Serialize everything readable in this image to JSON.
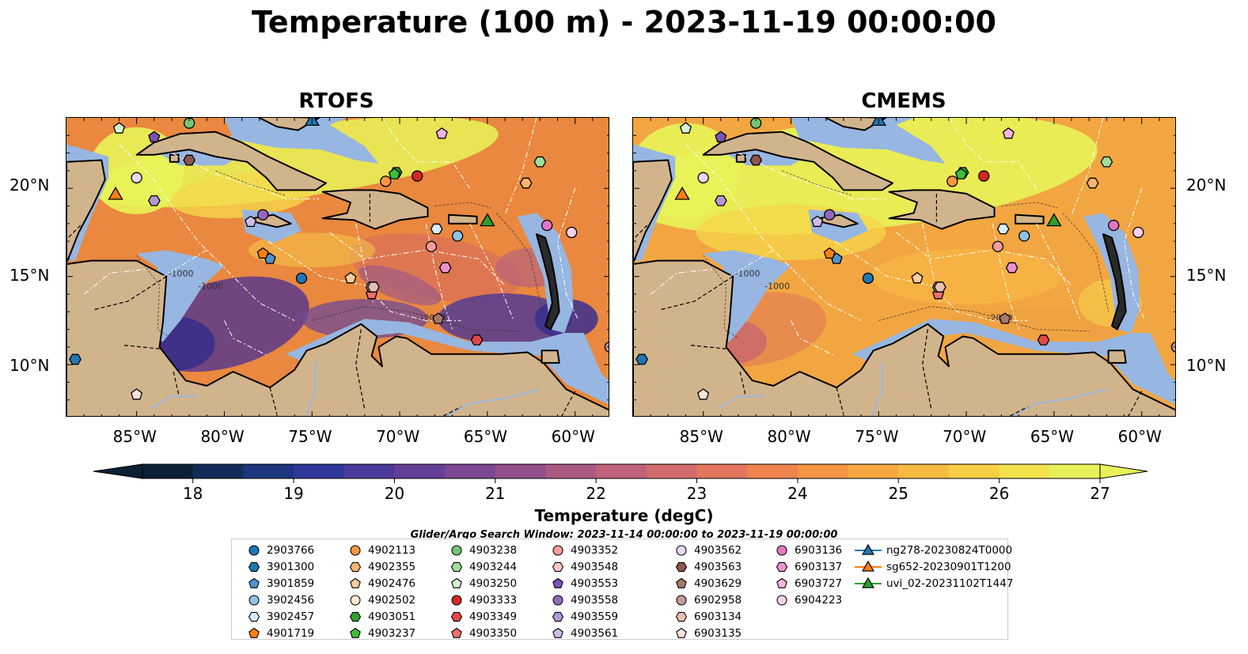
{
  "title": "Temperature (100 m) - 2023-11-19 00:00:00",
  "panels": [
    {
      "title": "RTOFS",
      "style": "cold"
    },
    {
      "title": "CMEMS",
      "style": "warm"
    }
  ],
  "map": {
    "lon_labels": [
      "85°W",
      "80°W",
      "75°W",
      "70°W",
      "65°W",
      "60°W"
    ],
    "lat_labels": [
      "20°N",
      "15°N",
      "10°N"
    ],
    "lon_range": [
      -89,
      -58
    ],
    "lat_range": [
      7,
      24
    ],
    "contour_labels": [
      "-1000",
      "-1000",
      "-2000"
    ],
    "colors": {
      "land": "#d2b48c",
      "shallow": "#97b6e1",
      "deep": "#0b2035",
      "warm": "#f4a040",
      "hot": "#e8f458",
      "cold": "#5a3a8c"
    }
  },
  "colorbar": {
    "ticks": [
      "18",
      "19",
      "20",
      "21",
      "22",
      "23",
      "24",
      "25",
      "26",
      "27"
    ],
    "label": "Temperature (degC)",
    "range": [
      18,
      27
    ],
    "colors": [
      "#0b2035",
      "#112d57",
      "#1c3680",
      "#2f3799",
      "#4b3a9b",
      "#633f98",
      "#7b4792",
      "#93508b",
      "#aa5983",
      "#c0627a",
      "#d26b6d",
      "#e2765e",
      "#ef844f",
      "#f59445",
      "#f7a742",
      "#f8bb42",
      "#f6cf45",
      "#f2e14b",
      "#e9f15a"
    ]
  },
  "search_window": "Glider/Argo Search Window: 2023-11-14 00:00:00 to 2023-11-19 00:00:00",
  "legend": [
    {
      "label": "2903766",
      "marker": "circle",
      "color": "#1f77b4"
    },
    {
      "label": "3901300",
      "marker": "hexagon",
      "color": "#1f77b4"
    },
    {
      "label": "3901859",
      "marker": "pentagon",
      "color": "#4c94d0"
    },
    {
      "label": "3902456",
      "marker": "circle",
      "color": "#8fc3e6"
    },
    {
      "label": "3902457",
      "marker": "hexagon",
      "color": "#d5ecfa"
    },
    {
      "label": "4901719",
      "marker": "pentagon",
      "color": "#ff7f0e"
    },
    {
      "label": "4902113",
      "marker": "circle",
      "color": "#ff9640"
    },
    {
      "label": "4902355",
      "marker": "hexagon",
      "color": "#ffb46e"
    },
    {
      "label": "4902476",
      "marker": "pentagon",
      "color": "#ffcc99"
    },
    {
      "label": "4902502",
      "marker": "circle",
      "color": "#ffe6cc"
    },
    {
      "label": "4903051",
      "marker": "hexagon",
      "color": "#2ca02c"
    },
    {
      "label": "4903237",
      "marker": "pentagon",
      "color": "#3dbf3d"
    },
    {
      "label": "4903238",
      "marker": "circle",
      "color": "#74c476"
    },
    {
      "label": "4903244",
      "marker": "hexagon",
      "color": "#a1dd9b"
    },
    {
      "label": "4903250",
      "marker": "pentagon",
      "color": "#d3f5cf"
    },
    {
      "label": "4903333",
      "marker": "circle",
      "color": "#d62728"
    },
    {
      "label": "4903349",
      "marker": "hexagon",
      "color": "#e04848"
    },
    {
      "label": "4903350",
      "marker": "pentagon",
      "color": "#ee7070"
    },
    {
      "label": "4903352",
      "marker": "circle",
      "color": "#f59c9a"
    },
    {
      "label": "4903548",
      "marker": "hexagon",
      "color": "#fac6c4"
    },
    {
      "label": "4903553",
      "marker": "pentagon",
      "color": "#7d52b8"
    },
    {
      "label": "4903558",
      "marker": "circle",
      "color": "#9467bd"
    },
    {
      "label": "4903559",
      "marker": "hexagon",
      "color": "#b398d6"
    },
    {
      "label": "4903561",
      "marker": "pentagon",
      "color": "#d0bce8"
    },
    {
      "label": "4903562",
      "marker": "circle",
      "color": "#ead9f7"
    },
    {
      "label": "4903563",
      "marker": "hexagon",
      "color": "#8c564b"
    },
    {
      "label": "4903629",
      "marker": "pentagon",
      "color": "#a8786c"
    },
    {
      "label": "6902958",
      "marker": "circle",
      "color": "#c49c94"
    },
    {
      "label": "6903134",
      "marker": "hexagon",
      "color": "#e8bfb3"
    },
    {
      "label": "6903135",
      "marker": "pentagon",
      "color": "#f9e1d6"
    },
    {
      "label": "6903136",
      "marker": "circle",
      "color": "#e377c2"
    },
    {
      "label": "6903137",
      "marker": "hexagon",
      "color": "#ec92d0"
    },
    {
      "label": "6903727",
      "marker": "pentagon",
      "color": "#f5b5e0"
    },
    {
      "label": "6904223",
      "marker": "circle",
      "color": "#fbd1ee"
    },
    {
      "label": "ng278-20230824T0000",
      "marker": "triangle-line",
      "color": "#1f77b4"
    },
    {
      "label": "sg652-20230901T1200",
      "marker": "triangle-line",
      "color": "#ff7f0e"
    },
    {
      "label": "uvi_02-20231102T1447",
      "marker": "triangle-line",
      "color": "#2ca02c"
    }
  ],
  "floats": [
    {
      "id": "2903766",
      "marker": "circle",
      "color": "#1f77b4",
      "lon": -75.6,
      "lat": 14.9
    },
    {
      "id": "3901300",
      "marker": "hexagon",
      "color": "#1f77b4",
      "lon": -88.5,
      "lat": 10.3
    },
    {
      "id": "3901859",
      "marker": "pentagon",
      "color": "#4c94d0",
      "lon": -77.4,
      "lat": 16.0
    },
    {
      "id": "3902456",
      "marker": "circle",
      "color": "#8fc3e6",
      "lon": -66.7,
      "lat": 17.3
    },
    {
      "id": "3902457",
      "marker": "hexagon",
      "color": "#d5ecfa",
      "lon": -67.9,
      "lat": 17.7
    },
    {
      "id": "4901719",
      "marker": "pentagon",
      "color": "#ff7f0e",
      "lon": -77.8,
      "lat": 16.3
    },
    {
      "id": "4902113",
      "marker": "circle",
      "color": "#ff9640",
      "lon": -70.8,
      "lat": 20.4
    },
    {
      "id": "4902355",
      "marker": "hexagon",
      "color": "#ffb46e",
      "lon": -62.8,
      "lat": 20.3
    },
    {
      "id": "4902476",
      "marker": "pentagon",
      "color": "#ffcc99",
      "lon": -72.8,
      "lat": 14.9
    },
    {
      "id": "4902502",
      "marker": "circle",
      "color": "#ffe6cc",
      "lon": -58.0,
      "lat": 11.0
    },
    {
      "id": "4903051",
      "marker": "hexagon",
      "color": "#2ca02c",
      "lon": -70.2,
      "lat": 20.9
    },
    {
      "id": "4903237",
      "marker": "pentagon",
      "color": "#3dbf3d",
      "lon": -70.3,
      "lat": 20.8
    },
    {
      "id": "4903238",
      "marker": "circle",
      "color": "#74c476",
      "lon": -82.0,
      "lat": 23.7
    },
    {
      "id": "4903244",
      "marker": "hexagon",
      "color": "#a1dd9b",
      "lon": -62.0,
      "lat": 21.5
    },
    {
      "id": "4903250",
      "marker": "pentagon",
      "color": "#d3f5cf",
      "lon": -86.0,
      "lat": 23.4
    },
    {
      "id": "4903333",
      "marker": "circle",
      "color": "#d62728",
      "lon": -69.0,
      "lat": 20.7
    },
    {
      "id": "4903349",
      "marker": "hexagon",
      "color": "#e04848",
      "lon": -65.6,
      "lat": 11.4
    },
    {
      "id": "4903350",
      "marker": "pentagon",
      "color": "#ee7070",
      "lon": -71.6,
      "lat": 14.0
    },
    {
      "id": "4903352",
      "marker": "circle",
      "color": "#f59c9a",
      "lon": -68.2,
      "lat": 16.7
    },
    {
      "id": "4903548",
      "marker": "hexagon",
      "color": "#fac6c4",
      "lon": -71.6,
      "lat": 14.4
    },
    {
      "id": "4903553",
      "marker": "pentagon",
      "color": "#7d52b8",
      "lon": -84.0,
      "lat": 22.9
    },
    {
      "id": "4903558",
      "marker": "circle",
      "color": "#9467bd",
      "lon": -77.8,
      "lat": 18.5
    },
    {
      "id": "4903559",
      "marker": "hexagon",
      "color": "#b398d6",
      "lon": -84.0,
      "lat": 19.3
    },
    {
      "id": "4903561",
      "marker": "pentagon",
      "color": "#d0bce8",
      "lon": -78.5,
      "lat": 18.1
    },
    {
      "id": "4903562",
      "marker": "circle",
      "color": "#ead9f7",
      "lon": -85.0,
      "lat": 20.6
    },
    {
      "id": "4903563",
      "marker": "hexagon",
      "color": "#8c564b",
      "lon": -82.0,
      "lat": 21.6
    },
    {
      "id": "4903629",
      "marker": "pentagon",
      "color": "#a8786c",
      "lon": -67.8,
      "lat": 12.6
    },
    {
      "id": "6902958",
      "marker": "circle",
      "color": "#c49c94",
      "lon": -58.0,
      "lat": 11.0
    },
    {
      "id": "6903134",
      "marker": "hexagon",
      "color": "#e8bfb3",
      "lon": -71.5,
      "lat": 14.4
    },
    {
      "id": "6903135",
      "marker": "pentagon",
      "color": "#f9e1d6",
      "lon": -85.0,
      "lat": 8.3
    },
    {
      "id": "6903136",
      "marker": "circle",
      "color": "#e377c2",
      "lon": -61.6,
      "lat": 17.9
    },
    {
      "id": "6903137",
      "marker": "hexagon",
      "color": "#ec92d0",
      "lon": -67.4,
      "lat": 15.5
    },
    {
      "id": "6903727",
      "marker": "pentagon",
      "color": "#f5b5e0",
      "lon": -67.6,
      "lat": 23.1
    },
    {
      "id": "6904223",
      "marker": "circle",
      "color": "#fbd1ee",
      "lon": -60.2,
      "lat": 17.5
    }
  ],
  "gliders": [
    {
      "id": "ng278-20230824T0000",
      "color": "#1f77b4",
      "lon": -75.0,
      "lat": 23.8
    },
    {
      "id": "sg652-20230901T1200",
      "color": "#ff7f0e",
      "lon": -86.2,
      "lat": 19.6
    },
    {
      "id": "uvi_02-20231102T1447",
      "color": "#2ca02c",
      "lon": -65.0,
      "lat": 18.1
    }
  ]
}
